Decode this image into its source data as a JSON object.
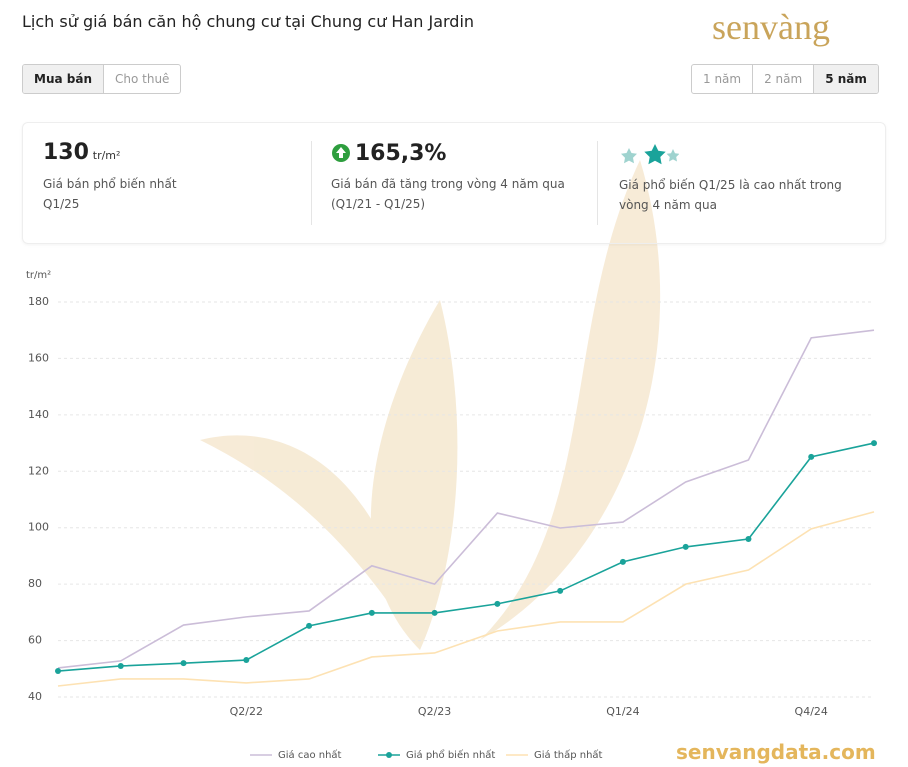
{
  "header": {
    "title": "Lịch sử giá bán căn hộ chung cư tại Chung cư Han Jardin",
    "logo": "senvàng"
  },
  "tabs": [
    "Mua bán",
    "Cho thuê"
  ],
  "periods": [
    "1 năm",
    "2 năm",
    "5 năm"
  ],
  "stats": [
    {
      "value": "130",
      "unit": "tr/m²",
      "text": "Giá bán phổ biến nhất",
      "sub": "Q1/25"
    },
    {
      "value": "165,3%",
      "text": "Giá bán đã tăng trong vòng 4 năm qua",
      "sub": "(Q1/21 - Q1/25)"
    },
    {
      "text": "Giá phổ biến Q1/25 là cao nhất trong",
      "sub": "vòng 4 năm qua"
    }
  ],
  "watermark": "senvangdata.com",
  "chart_data": {
    "type": "line",
    "ylabel": "tr/m²",
    "categories": [
      null,
      null,
      null,
      "Q2/22",
      null,
      null,
      "Q2/23",
      null,
      null,
      "Q1/24",
      null,
      null,
      "Q4/24",
      null
    ],
    "series": [
      {
        "name": "Giá cao nhất",
        "color": "#cbbdd8",
        "markers": false,
        "values": [
          50.3,
          52.8,
          65.5,
          68.4,
          70.5,
          86.5,
          80,
          105.2,
          99.9,
          102,
          116.2,
          124,
          167.3,
          170
        ]
      },
      {
        "name": "Giá phổ biến nhất",
        "color": "#1aa39a",
        "markers": true,
        "values": [
          49.2,
          51,
          52,
          53.1,
          65.2,
          69.8,
          69.8,
          73,
          77.6,
          87.9,
          93.2,
          96,
          125.1,
          130
        ]
      },
      {
        "name": "Giá thấp nhất",
        "color": "#fde2b3",
        "markers": false,
        "values": [
          43.9,
          46.4,
          46.4,
          45,
          46.4,
          54.2,
          55.6,
          63.4,
          66.6,
          66.6,
          80,
          85,
          99.6,
          105.6
        ]
      }
    ],
    "ylim": [
      40,
      180
    ],
    "yticks": [
      40,
      60,
      80,
      100,
      120,
      140,
      160,
      180
    ],
    "grid": true
  }
}
